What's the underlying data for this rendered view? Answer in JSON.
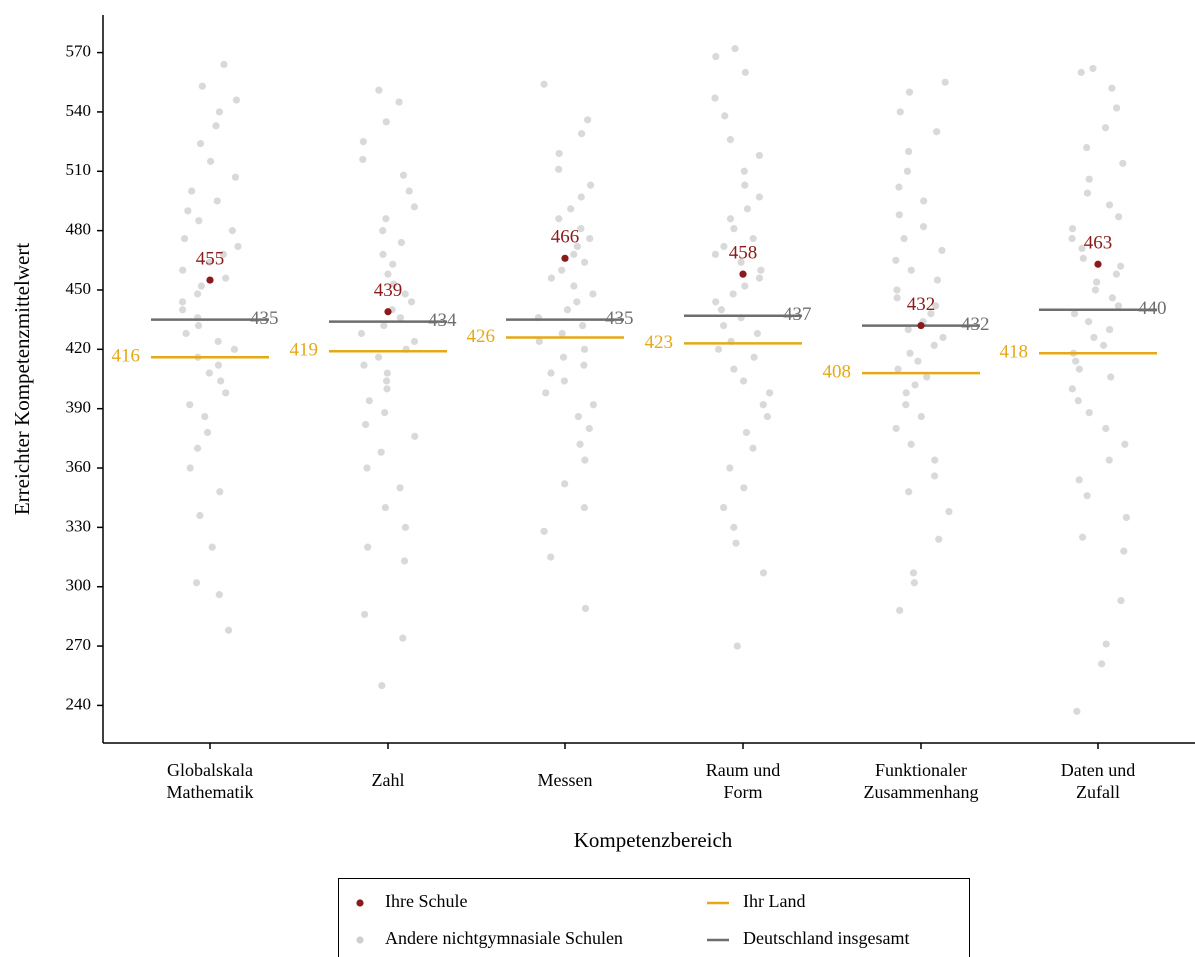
{
  "chart_data": {
    "type": "strip",
    "y_label": "Erreichter Kompetenzmittelwert",
    "x_label": "Kompetenzbereich",
    "categories": [
      "Globalskala Mathematik",
      "Zahl",
      "Messen",
      "Raum und Form",
      "Funktionaler Zusammenhang",
      "Daten und Zufall"
    ],
    "ylim": [
      221,
      589
    ],
    "yticks": [
      240,
      270,
      300,
      330,
      360,
      390,
      420,
      450,
      480,
      510,
      540,
      570
    ],
    "series": [
      {
        "name": "Ihre Schule",
        "color": "#8b1a1a",
        "marker": "point",
        "label_position": "above",
        "values": [
          455,
          439,
          466,
          458,
          432,
          463
        ]
      },
      {
        "name": "Ihr Land",
        "color": "#e6a817",
        "marker": "line",
        "label_position": "left",
        "values": [
          416,
          419,
          426,
          423,
          408,
          418
        ]
      },
      {
        "name": "Andere nichtgymnasiale Schulen",
        "color": "#cfcfcf",
        "marker": "cloud",
        "values": [
          [
            564,
            553,
            546,
            540,
            533,
            524,
            515,
            507,
            500,
            495,
            490,
            485,
            480,
            476,
            472,
            468,
            464,
            460,
            456,
            452,
            448,
            444,
            440,
            436,
            432,
            428,
            424,
            420,
            416,
            412,
            408,
            404,
            398,
            392,
            386,
            378,
            370,
            360,
            348,
            336,
            320,
            302,
            296,
            278
          ],
          [
            551,
            545,
            535,
            525,
            516,
            508,
            500,
            492,
            486,
            480,
            474,
            468,
            463,
            458,
            453,
            448,
            444,
            440,
            436,
            432,
            428,
            424,
            420,
            416,
            412,
            408,
            404,
            400,
            394,
            388,
            382,
            376,
            368,
            360,
            350,
            340,
            330,
            320,
            313,
            286,
            274,
            250
          ],
          [
            554,
            536,
            529,
            519,
            511,
            503,
            497,
            491,
            486,
            481,
            476,
            472,
            468,
            464,
            460,
            456,
            452,
            448,
            444,
            440,
            436,
            432,
            428,
            424,
            420,
            416,
            412,
            408,
            404,
            398,
            392,
            386,
            380,
            372,
            364,
            352,
            340,
            328,
            315,
            289
          ],
          [
            572,
            568,
            560,
            547,
            538,
            526,
            518,
            510,
            503,
            497,
            491,
            486,
            481,
            476,
            472,
            468,
            464,
            460,
            456,
            452,
            448,
            444,
            440,
            436,
            432,
            428,
            424,
            420,
            416,
            410,
            404,
            398,
            392,
            386,
            378,
            370,
            360,
            350,
            340,
            330,
            322,
            307,
            270
          ],
          [
            555,
            550,
            540,
            530,
            520,
            510,
            502,
            495,
            488,
            482,
            476,
            470,
            465,
            460,
            455,
            450,
            446,
            442,
            438,
            434,
            430,
            426,
            422,
            418,
            414,
            410,
            406,
            402,
            398,
            392,
            386,
            380,
            372,
            364,
            356,
            348,
            338,
            324,
            307,
            302,
            288
          ],
          [
            562,
            560,
            552,
            542,
            532,
            522,
            514,
            506,
            499,
            493,
            487,
            481,
            476,
            471,
            466,
            462,
            458,
            454,
            450,
            446,
            442,
            438,
            434,
            430,
            426,
            422,
            418,
            414,
            410,
            406,
            400,
            394,
            388,
            380,
            372,
            364,
            354,
            346,
            335,
            325,
            318,
            293,
            271,
            261,
            237
          ]
        ]
      },
      {
        "name": "Deutschland insgesamt",
        "color": "#6e6e6e",
        "marker": "line",
        "label_position": "right",
        "values": [
          435,
          434,
          435,
          437,
          432,
          440
        ]
      }
    ]
  }
}
